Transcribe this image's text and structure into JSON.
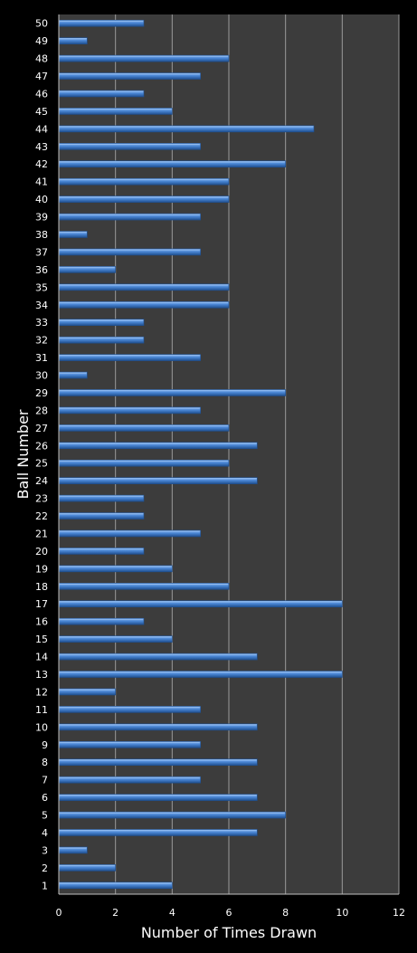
{
  "chart_data": {
    "type": "bar",
    "orientation": "horizontal",
    "xlabel": "Number of Times Drawn",
    "ylabel": "Ball Number",
    "xlim": [
      0,
      12
    ],
    "xticks": [
      0,
      2,
      4,
      6,
      8,
      10,
      12
    ],
    "grid": true,
    "legend": "none",
    "categories": [
      "1",
      "2",
      "3",
      "4",
      "5",
      "6",
      "7",
      "8",
      "9",
      "10",
      "11",
      "12",
      "13",
      "14",
      "15",
      "16",
      "17",
      "18",
      "19",
      "20",
      "21",
      "22",
      "23",
      "24",
      "25",
      "26",
      "27",
      "28",
      "29",
      "30",
      "31",
      "32",
      "33",
      "34",
      "35",
      "36",
      "37",
      "38",
      "39",
      "40",
      "41",
      "42",
      "43",
      "44",
      "45",
      "46",
      "47",
      "48",
      "49",
      "50"
    ],
    "values": [
      4,
      2,
      1,
      7,
      8,
      7,
      5,
      7,
      5,
      7,
      5,
      2,
      10,
      7,
      4,
      3,
      10,
      6,
      4,
      3,
      5,
      3,
      3,
      7,
      6,
      7,
      6,
      5,
      8,
      1,
      5,
      3,
      3,
      6,
      6,
      2,
      5,
      1,
      5,
      6,
      6,
      8,
      5,
      9,
      4,
      3,
      5,
      6,
      1,
      3
    ],
    "colors": {
      "page_background": "#000000",
      "plot_background": "#3c3c3c",
      "bar_fill": "#4a86d4",
      "bar_highlight": "#8fbaf0",
      "bar_shadow": "#1f4f8f",
      "gridline": "#9a9a9a",
      "axis": "#bfbfbf",
      "text": "#ffffff"
    }
  }
}
